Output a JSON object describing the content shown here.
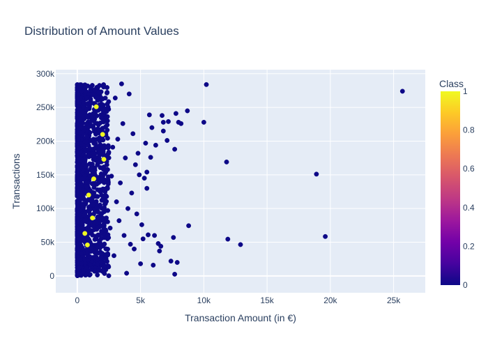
{
  "chart_data": {
    "type": "scatter",
    "title": "Distribution of Amount Values",
    "xlabel": "Transaction Amount (in €)",
    "ylabel": "Transactions",
    "xlim": [
      -1700,
      27500
    ],
    "ylim": [
      -25000,
      306000
    ],
    "x_ticks": [
      0,
      5000,
      10000,
      15000,
      20000,
      25000
    ],
    "x_tick_labels": [
      "0",
      "5k",
      "10k",
      "15k",
      "20k",
      "25k"
    ],
    "y_ticks": [
      0,
      50000,
      100000,
      150000,
      200000,
      250000,
      300000
    ],
    "y_tick_labels": [
      "0",
      "50k",
      "100k",
      "150k",
      "200k",
      "250k",
      "300k"
    ],
    "grid": true,
    "colorbar": {
      "title": "Class",
      "range": [
        0,
        1
      ],
      "ticks": [
        0,
        0.2,
        0.4,
        0.6,
        0.8,
        1
      ],
      "tick_labels": [
        "0",
        "0.2",
        "0.4",
        "0.6",
        "0.8",
        "1"
      ],
      "colors": [
        "#0d0887",
        "#46039f",
        "#7201a8",
        "#9c179e",
        "#bd3786",
        "#d8576b",
        "#ed7953",
        "#fb9f3a",
        "#fdca26",
        "#f0f921"
      ]
    },
    "dense_band": {
      "x_range": [
        0,
        2500
      ],
      "y_range": [
        0,
        284000
      ],
      "class": 0
    },
    "series": [
      {
        "class": 0,
        "points": [
          [
            25700,
            274000
          ],
          [
            19600,
            58500
          ],
          [
            18900,
            151000
          ],
          [
            12900,
            46500
          ],
          [
            11900,
            54500
          ],
          [
            11800,
            169000
          ],
          [
            10200,
            284000
          ],
          [
            10000,
            228000
          ],
          [
            8800,
            74500
          ],
          [
            8700,
            245000
          ],
          [
            8200,
            226000
          ],
          [
            8000,
            228000
          ],
          [
            7900,
            20000
          ],
          [
            7800,
            241000
          ],
          [
            7700,
            188000
          ],
          [
            7600,
            57000
          ],
          [
            7700,
            2500
          ],
          [
            7400,
            22000
          ],
          [
            7200,
            229000
          ],
          [
            7100,
            201000
          ],
          [
            6800,
            228000
          ],
          [
            6800,
            215000
          ],
          [
            6700,
            238000
          ],
          [
            6600,
            44000
          ],
          [
            6400,
            48000
          ],
          [
            6500,
            37000
          ],
          [
            6200,
            194000
          ],
          [
            6100,
            60000
          ],
          [
            6000,
            16000
          ],
          [
            5900,
            220000
          ],
          [
            5800,
            176000
          ],
          [
            5700,
            239000
          ],
          [
            5600,
            61000
          ],
          [
            5500,
            154000
          ],
          [
            5500,
            130000
          ],
          [
            5400,
            197000
          ],
          [
            5300,
            145000
          ],
          [
            5200,
            55000
          ],
          [
            5100,
            76000
          ],
          [
            5000,
            18000
          ],
          [
            4900,
            150000
          ],
          [
            4800,
            182000
          ],
          [
            4700,
            92000
          ],
          [
            4600,
            165000
          ],
          [
            4500,
            40000
          ],
          [
            4400,
            211000
          ],
          [
            4300,
            123000
          ],
          [
            4200,
            47000
          ],
          [
            4100,
            270000
          ],
          [
            4000,
            100000
          ],
          [
            3900,
            4000
          ],
          [
            3800,
            175000
          ],
          [
            3700,
            60000
          ],
          [
            3600,
            226000
          ],
          [
            3500,
            285000
          ],
          [
            3400,
            138000
          ],
          [
            3300,
            82000
          ],
          [
            3200,
            203000
          ],
          [
            3100,
            110000
          ],
          [
            3000,
            264000
          ],
          [
            2900,
            30000
          ],
          [
            2800,
            191000
          ],
          [
            2700,
            148000
          ],
          [
            2600,
            71000
          ]
        ]
      },
      {
        "class": 1,
        "points": [
          [
            1500,
            251000
          ],
          [
            2100,
            173000
          ],
          [
            1300,
            144000
          ],
          [
            900,
            120000
          ],
          [
            1200,
            86000
          ],
          [
            800,
            46000
          ],
          [
            2000,
            210000
          ],
          [
            600,
            63000
          ]
        ]
      }
    ]
  }
}
